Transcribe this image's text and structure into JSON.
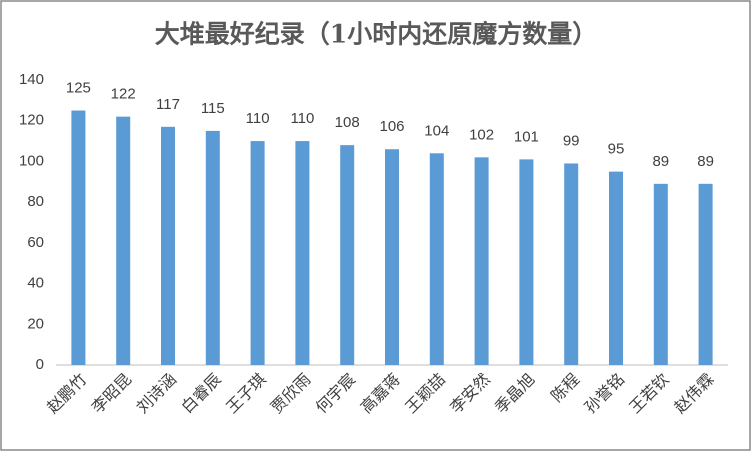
{
  "chart_data": {
    "type": "bar",
    "title": "大堆最好纪录（1小时内还原魔方数量）",
    "categories": [
      "赵鹏竹",
      "李昭昆",
      "刘诗涵",
      "白睿辰",
      "王子琪",
      "贾欣雨",
      "何宇宸",
      "高嘉蒋",
      "王颖喆",
      "李安然",
      "季晶旭",
      "陈程",
      "孙誉铭",
      "王若钦",
      "赵伟霖"
    ],
    "values": [
      125,
      122,
      117,
      115,
      110,
      110,
      108,
      106,
      104,
      102,
      101,
      99,
      95,
      89,
      89
    ],
    "color": "#5b9bd5",
    "ylim": [
      0,
      140
    ],
    "yticks": [
      0,
      20,
      40,
      60,
      80,
      100,
      120,
      140
    ],
    "grid": false
  }
}
